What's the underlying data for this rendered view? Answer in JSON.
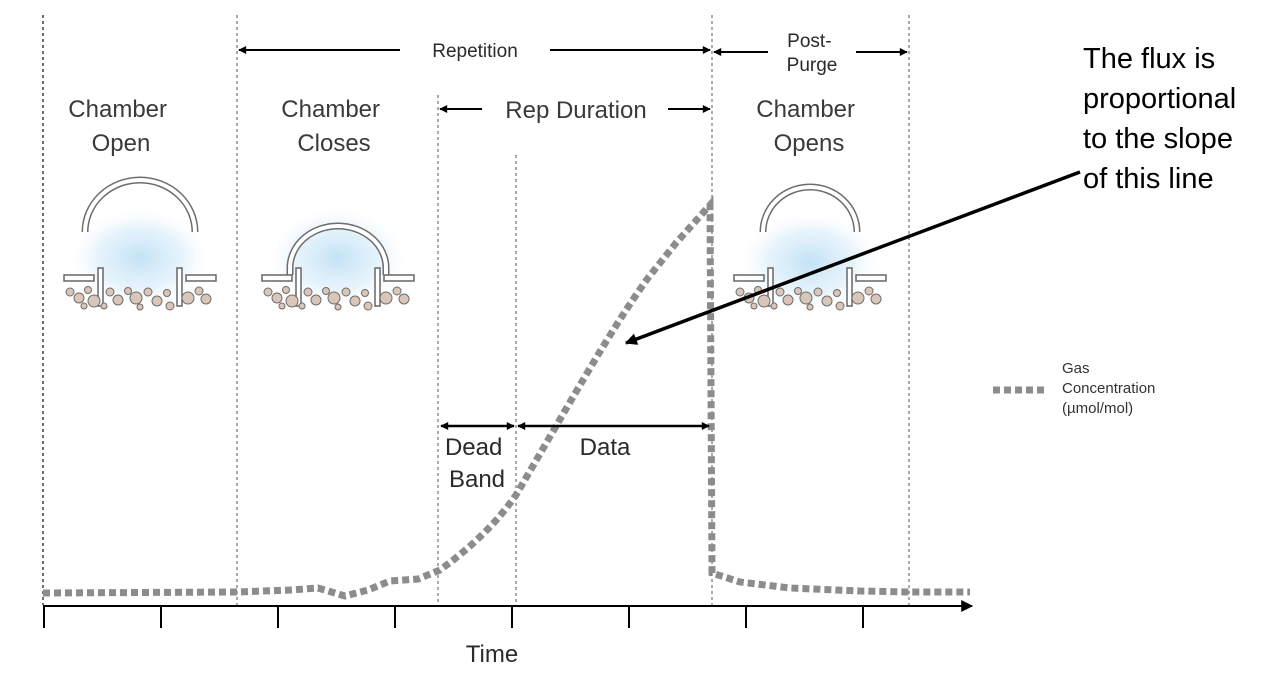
{
  "phases": {
    "chamber_open": [
      "Chamber",
      "Open"
    ],
    "chamber_closes": [
      "Chamber",
      "Closes"
    ],
    "chamber_opens": [
      "Chamber",
      "Opens"
    ]
  },
  "intervals": {
    "repetition": "Repetition",
    "post_purge": [
      "Post-",
      "Purge"
    ],
    "rep_duration": "Rep Duration",
    "dead_band": [
      "Dead",
      "Band"
    ],
    "data": "Data"
  },
  "axis": {
    "x_label": "Time"
  },
  "callout": {
    "lines": [
      "The flux is",
      "proportional",
      "to the slope",
      "of this line"
    ]
  },
  "legend": {
    "lines": [
      "Gas",
      "Concentration",
      "(µmol/mol)"
    ]
  },
  "colors": {
    "curve": "#8c8c8c",
    "chamber_glow": "#bfe0f5",
    "soil_particle": "#d9c6b8",
    "axis": "#000000",
    "divider": "#555555"
  },
  "icons": [
    "chamber-open-icon",
    "chamber-closed-icon",
    "chamber-opening-icon"
  ]
}
